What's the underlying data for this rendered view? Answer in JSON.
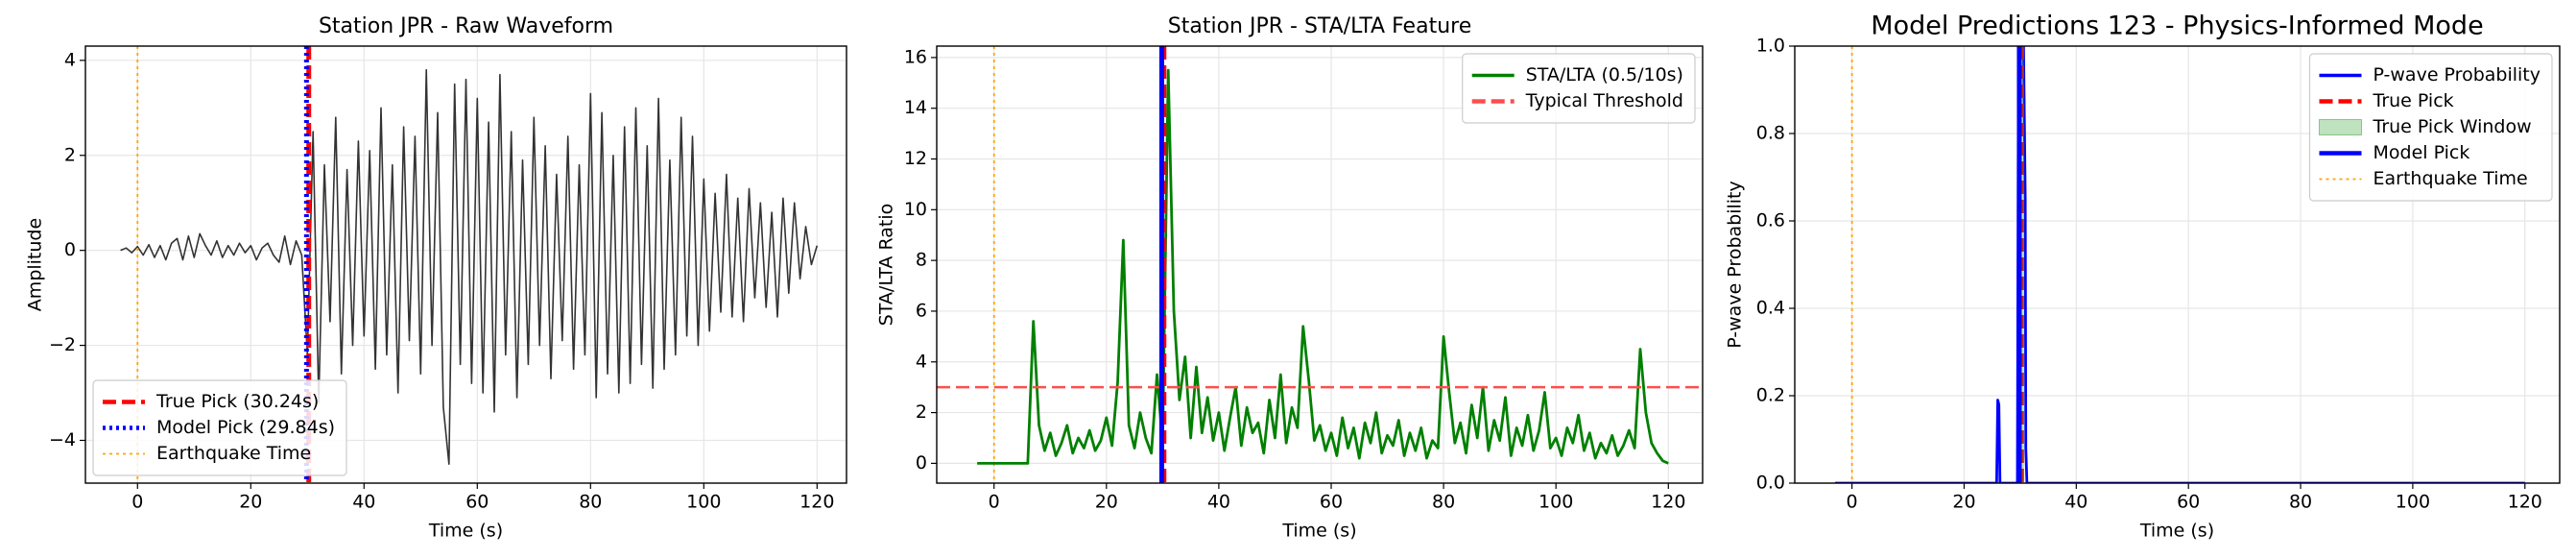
{
  "chart_data": [
    {
      "type": "line",
      "title": "Station JPR - Raw Waveform",
      "xlabel": "Time (s)",
      "ylabel": "Amplitude",
      "xlim": [
        -9.2,
        125.2
      ],
      "ylim": [
        -4.9,
        4.3
      ],
      "xticks": [
        0,
        20,
        40,
        60,
        80,
        100,
        120
      ],
      "yticks": [
        {
          "value": -4,
          "label": "−4"
        },
        {
          "value": -2,
          "label": "−2"
        },
        0,
        2,
        4
      ],
      "grid": true,
      "legend": "lower left",
      "series": [
        {
          "kind": "line",
          "color": "#333333",
          "style": "solid",
          "x": [
            -3,
            -2,
            -1,
            0,
            1,
            2,
            3,
            4,
            5,
            6,
            7,
            8,
            9,
            10,
            11,
            12,
            13,
            14,
            15,
            16,
            17,
            18,
            19,
            20,
            21,
            22,
            23,
            24,
            25,
            26,
            27,
            28,
            29,
            30,
            31,
            32,
            33,
            34,
            35,
            36,
            37,
            38,
            39,
            40,
            41,
            42,
            43,
            44,
            45,
            46,
            47,
            48,
            49,
            50,
            51,
            52,
            53,
            54,
            55,
            56,
            57,
            58,
            59,
            60,
            61,
            62,
            63,
            64,
            65,
            66,
            67,
            68,
            69,
            70,
            71,
            72,
            73,
            74,
            75,
            76,
            77,
            78,
            79,
            80,
            81,
            82,
            83,
            84,
            85,
            86,
            87,
            88,
            89,
            90,
            91,
            92,
            93,
            94,
            95,
            96,
            97,
            98,
            99,
            100,
            101,
            102,
            103,
            104,
            105,
            106,
            107,
            108,
            109,
            110,
            111,
            112,
            113,
            114,
            115,
            116,
            117,
            118,
            119,
            120
          ],
          "values": [
            0,
            0.05,
            -0.05,
            0.08,
            -0.1,
            0.12,
            -0.15,
            0.1,
            -0.2,
            0.15,
            0.25,
            -0.2,
            0.3,
            -0.15,
            0.35,
            0.1,
            -0.1,
            0.2,
            -0.15,
            0.1,
            -0.1,
            0.15,
            -0.05,
            0.1,
            -0.2,
            0.05,
            0.15,
            -0.1,
            -0.25,
            0.3,
            -0.3,
            0.2,
            -0.1,
            -2.2,
            2.5,
            -3.2,
            1.8,
            -1.5,
            2.8,
            -2.6,
            1.7,
            -2.0,
            2.3,
            -1.8,
            2.1,
            -2.5,
            3.0,
            -2.2,
            1.8,
            -3.0,
            2.6,
            -1.9,
            2.4,
            -2.6,
            3.8,
            -2.0,
            2.9,
            -3.3,
            -4.5,
            3.5,
            -2.4,
            3.6,
            -2.8,
            3.2,
            -3.0,
            2.7,
            -3.4,
            3.7,
            -2.2,
            2.5,
            -3.1,
            1.9,
            -2.4,
            2.8,
            -2.0,
            2.2,
            -2.7,
            1.6,
            -1.9,
            2.4,
            -2.5,
            1.8,
            -2.2,
            3.3,
            -3.1,
            2.9,
            -2.6,
            2.0,
            -3.0,
            2.6,
            -2.8,
            3.0,
            -2.4,
            2.2,
            -2.9,
            3.2,
            -2.5,
            1.9,
            -2.2,
            2.8,
            -1.8,
            2.4,
            -2.0,
            1.5,
            -1.7,
            1.2,
            -1.3,
            1.6,
            -1.4,
            1.1,
            -1.5,
            1.3,
            -1.0,
            1.0,
            -1.2,
            0.8,
            -1.4,
            1.1,
            -0.9,
            1.0,
            -0.6,
            0.5,
            -0.3,
            0.1
          ]
        },
        {
          "kind": "vline",
          "name": "True Pick (30.24s)",
          "x": 30.24,
          "color": "#ff0000",
          "style": "dashed"
        },
        {
          "kind": "vline",
          "name": "Model Pick (29.84s)",
          "x": 29.84,
          "color": "#0000ff",
          "style": "dotted"
        },
        {
          "kind": "vline",
          "name": "Earthquake Time",
          "x": 0,
          "color": "#ffa500",
          "style": "dotted"
        }
      ]
    },
    {
      "type": "line",
      "title": "Station JPR - STA/LTA Feature",
      "xlabel": "Time (s)",
      "ylabel": "STA/LTA Ratio",
      "xlim": [
        -10.2,
        126.1
      ],
      "ylim": [
        -0.78,
        16.45
      ],
      "xticks": [
        0,
        20,
        40,
        60,
        80,
        100,
        120
      ],
      "yticks": [
        0,
        2,
        4,
        6,
        8,
        10,
        12,
        14,
        16
      ],
      "grid": true,
      "legend": "upper right",
      "series": [
        {
          "kind": "vline",
          "x": 0,
          "color": "#ffa500",
          "style": "dotted"
        },
        {
          "kind": "line",
          "name": "STA/LTA (0.5/10s)",
          "color": "#008000",
          "style": "solid",
          "x": [
            -3,
            -2,
            -1,
            0,
            1,
            2,
            3,
            4,
            5,
            6,
            7,
            8,
            9,
            10,
            11,
            12,
            13,
            14,
            15,
            16,
            17,
            18,
            19,
            20,
            21,
            22,
            23,
            24,
            25,
            26,
            27,
            28,
            29,
            30,
            31,
            32,
            33,
            34,
            35,
            36,
            37,
            38,
            39,
            40,
            41,
            42,
            43,
            44,
            45,
            46,
            47,
            48,
            49,
            50,
            51,
            52,
            53,
            54,
            55,
            56,
            57,
            58,
            59,
            60,
            61,
            62,
            63,
            64,
            65,
            66,
            67,
            68,
            69,
            70,
            71,
            72,
            73,
            74,
            75,
            76,
            77,
            78,
            79,
            80,
            81,
            82,
            83,
            84,
            85,
            86,
            87,
            88,
            89,
            90,
            91,
            92,
            93,
            94,
            95,
            96,
            97,
            98,
            99,
            100,
            101,
            102,
            103,
            104,
            105,
            106,
            107,
            108,
            109,
            110,
            111,
            112,
            113,
            114,
            115,
            116,
            117,
            118,
            119,
            120
          ],
          "values": [
            0,
            0,
            0,
            0,
            0,
            0,
            0,
            0,
            0,
            0,
            5.6,
            1.5,
            0.5,
            1.2,
            0.3,
            0.8,
            1.5,
            0.4,
            1.0,
            0.6,
            1.3,
            0.5,
            0.9,
            1.8,
            0.7,
            3.2,
            8.8,
            1.5,
            0.6,
            2.0,
            1.0,
            0.4,
            3.5,
            0.8,
            15.5,
            6.0,
            2.5,
            4.2,
            1.0,
            3.8,
            1.2,
            2.6,
            0.9,
            2.0,
            0.5,
            1.8,
            3.0,
            0.7,
            2.2,
            1.2,
            1.6,
            0.4,
            2.5,
            1.0,
            3.5,
            0.8,
            2.2,
            1.4,
            5.4,
            3.3,
            0.9,
            1.5,
            0.5,
            1.2,
            0.3,
            1.8,
            0.6,
            1.4,
            0.2,
            1.6,
            0.8,
            2.0,
            0.4,
            1.1,
            0.7,
            1.7,
            0.3,
            1.2,
            0.5,
            1.4,
            0.2,
            0.9,
            0.6,
            5.0,
            2.8,
            0.8,
            1.6,
            0.4,
            2.3,
            1.0,
            3.0,
            0.5,
            1.7,
            0.9,
            2.6,
            0.3,
            1.4,
            0.7,
            1.9,
            0.5,
            1.3,
            2.8,
            0.6,
            1.0,
            0.3,
            1.4,
            0.8,
            1.9,
            0.5,
            1.2,
            0.2,
            0.8,
            0.4,
            1.1,
            0.3,
            0.7,
            1.3,
            0.6,
            4.5,
            2.0,
            0.8,
            0.4,
            0.1,
            0.0
          ]
        },
        {
          "kind": "hline",
          "name": "Typical Threshold",
          "y": 3,
          "color": "#ff4d4d",
          "style": "dashed"
        },
        {
          "kind": "vline",
          "x": 30.24,
          "color": "#ff0000",
          "style": "dashed"
        },
        {
          "kind": "vline",
          "x": 29.84,
          "color": "#0000ff",
          "style": "solid"
        }
      ]
    },
    {
      "type": "line",
      "title": "Model Predictions 123 - Physics-Informed Mode",
      "xlabel": "Time (s)",
      "ylabel": "P-wave Probability",
      "xlim": [
        -10.2,
        126.2
      ],
      "ylim": [
        0,
        1
      ],
      "xticks": [
        0,
        20,
        40,
        60,
        80,
        100,
        120
      ],
      "yticks": [
        {
          "value": 0,
          "label": "0.0"
        },
        0.2,
        0.4,
        0.6,
        0.8,
        {
          "value": 1,
          "label": "1.0"
        }
      ],
      "grid": true,
      "legend": "upper right",
      "series": [
        {
          "kind": "line",
          "name": "P-wave Probability",
          "color": "#0000ff",
          "style": "solid",
          "x": [
            -3,
            25.8,
            26,
            26.2,
            26.4,
            29.5,
            29.7,
            30,
            30.3,
            30.6,
            30.9,
            31,
            31.2,
            40,
            120
          ],
          "values": [
            0,
            0,
            0.19,
            0.18,
            0,
            0,
            1,
            1,
            1,
            1,
            0.65,
            0.08,
            0,
            0,
            0
          ]
        },
        {
          "kind": "vline",
          "name": "True Pick",
          "x": 30.24,
          "color": "#ff0000",
          "style": "dashed"
        },
        {
          "kind": "span",
          "name": "True Pick Window",
          "x": [
            29.74,
            30.74
          ],
          "color": "#2ca02c"
        },
        {
          "kind": "vline",
          "name": "Model Pick",
          "x": 29.84,
          "color": "#0000ff",
          "style": "solid"
        },
        {
          "kind": "vline",
          "name": "Earthquake Time",
          "x": 0,
          "color": "#ffa500",
          "style": "dotted"
        }
      ]
    }
  ]
}
